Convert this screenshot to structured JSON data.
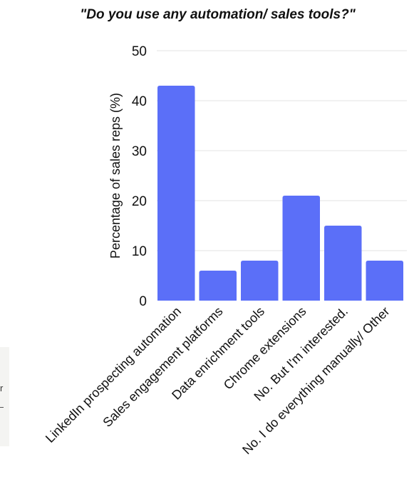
{
  "title": "\"Do you use any automation/ sales tools?\"",
  "colors": {
    "bar": "#5b6ff8",
    "grid": "#e3e3e3",
    "text": "#111111"
  },
  "side_panel_fragment": "r",
  "chart_data": {
    "type": "bar",
    "title": "\"Do you use any automation/ sales tools?\"",
    "xlabel": "",
    "ylabel": "Percentage of sales reps (%)",
    "ylim": [
      0,
      50
    ],
    "yticks": [
      0,
      10,
      20,
      30,
      40,
      50
    ],
    "grid": true,
    "categories": [
      "LinkedIn prospecting automation",
      "Sales engagement platforms",
      "Data enrichment tools",
      "Chrome extensions",
      "No. But I'm interested.",
      "No. I do everything manually/ Other"
    ],
    "values": [
      43,
      6,
      8,
      21,
      15,
      8
    ]
  }
}
